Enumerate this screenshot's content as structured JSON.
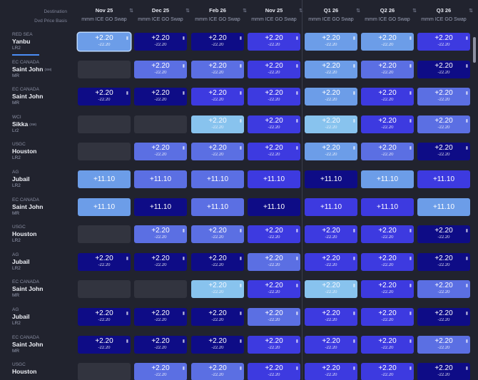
{
  "header": {
    "destination_label": "Destination",
    "basis_label": "Dvd Price Basis",
    "sort_glyph": "⇅",
    "columns": [
      {
        "period": "Nov 25",
        "basis": "mmm ICE GO Swap"
      },
      {
        "period": "Dec 25",
        "basis": "mmm ICE GO Swap"
      },
      {
        "period": "Feb 26",
        "basis": "mmm ICE GO Swap"
      },
      {
        "period": "Nov 25",
        "basis": "mmm ICE GO Swap"
      },
      {
        "period": "Q1 26",
        "basis": "mmm ICE GO Swap"
      },
      {
        "period": "Q2 26",
        "basis": "mmm ICE GO Swap"
      },
      {
        "period": "Q3 26",
        "basis": "mmm ICE GO Swap"
      }
    ]
  },
  "icons": {
    "doc": "document-icon",
    "sort": "sort-icon"
  },
  "colors": {
    "background": "#21232e",
    "empty": "#32343f",
    "dark": "#0e0c86",
    "mid": "#3d3ae0",
    "med": "#5b6fe3",
    "light": "#6c9de8",
    "pale": "#88c3ee",
    "selected_outline": "#bcd9ff",
    "row_underline": "#4b8df5"
  },
  "rows": [
    {
      "region": "RED SEA",
      "port": "Yanbu",
      "cap": "",
      "vessel": "LR2",
      "active": true,
      "cells": [
        {
          "style": "light",
          "value": "+2.20",
          "sub": "-22.20",
          "selected": true
        },
        {
          "style": "dark",
          "value": "+2.20",
          "sub": "-22.20"
        },
        {
          "style": "dark",
          "value": "+2.20",
          "sub": "-22.20"
        },
        {
          "style": "mid",
          "value": "+2.20",
          "sub": "-22.20"
        },
        {
          "style": "light",
          "value": "+2.20",
          "sub": "-22.20"
        },
        {
          "style": "light",
          "value": "+2.20",
          "sub": "-22.20"
        },
        {
          "style": "mid",
          "value": "+2.20",
          "sub": "-22.20"
        }
      ]
    },
    {
      "region": "EC CANADA",
      "port": "Saint John",
      "cap": "(SM)",
      "vessel": "MR",
      "cells": [
        {
          "style": "empty"
        },
        {
          "style": "med",
          "value": "+2.20",
          "sub": "-22.20"
        },
        {
          "style": "med",
          "value": "+2.20",
          "sub": "-22.20"
        },
        {
          "style": "mid",
          "value": "+2.20",
          "sub": "-22.20"
        },
        {
          "style": "light",
          "value": "+2.20",
          "sub": "-22.20"
        },
        {
          "style": "med",
          "value": "+2.20",
          "sub": "-22.20"
        },
        {
          "style": "dark",
          "value": "+2.20",
          "sub": "-22.20"
        }
      ]
    },
    {
      "region": "EC CANADA",
      "port": "Saint John",
      "cap": "",
      "vessel": "MR",
      "cells": [
        {
          "style": "dark",
          "value": "+2.20",
          "sub": "-22.20"
        },
        {
          "style": "dark",
          "value": "+2.20",
          "sub": "-22.20"
        },
        {
          "style": "mid",
          "value": "+2.20",
          "sub": "-22.20"
        },
        {
          "style": "mid",
          "value": "+2.20",
          "sub": "-22.20"
        },
        {
          "style": "light",
          "value": "+2.20",
          "sub": "-22.20"
        },
        {
          "style": "mid",
          "value": "+2.20",
          "sub": "-22.20"
        },
        {
          "style": "med",
          "value": "+2.20",
          "sub": "-22.20"
        }
      ]
    },
    {
      "region": "WCI",
      "port": "Sikka",
      "cap": "(SM)",
      "vessel": "Lr2",
      "cells": [
        {
          "style": "empty"
        },
        {
          "style": "empty"
        },
        {
          "style": "pale",
          "value": "+2.20",
          "sub": "-22.20"
        },
        {
          "style": "mid",
          "value": "+2.20",
          "sub": "-22.20"
        },
        {
          "style": "pale",
          "value": "+2.20",
          "sub": "-22.20"
        },
        {
          "style": "mid",
          "value": "+2.20",
          "sub": "-22.20"
        },
        {
          "style": "med",
          "value": "+2.20",
          "sub": "-22.20"
        }
      ]
    },
    {
      "region": "USGC",
      "port": "Houston",
      "cap": "",
      "vessel": "LR2",
      "cells": [
        {
          "style": "empty"
        },
        {
          "style": "med",
          "value": "+2.20",
          "sub": "-22.20"
        },
        {
          "style": "med",
          "value": "+2.20",
          "sub": "-22.20"
        },
        {
          "style": "mid",
          "value": "+2.20",
          "sub": "-22.20"
        },
        {
          "style": "light",
          "value": "+2.20",
          "sub": "-22.20"
        },
        {
          "style": "med",
          "value": "+2.20",
          "sub": "-22.20"
        },
        {
          "style": "dark",
          "value": "+2.20",
          "sub": "-22.20"
        }
      ]
    },
    {
      "region": "AG",
      "port": "Jubail",
      "cap": "",
      "vessel": "LR2",
      "cells": [
        {
          "style": "light",
          "value": "+11.10"
        },
        {
          "style": "med",
          "value": "+11.10"
        },
        {
          "style": "med",
          "value": "+11.10"
        },
        {
          "style": "mid",
          "value": "+11.10"
        },
        {
          "style": "dark",
          "value": "+11.10"
        },
        {
          "style": "light",
          "value": "+11.10"
        },
        {
          "style": "mid",
          "value": "+11.10"
        }
      ]
    },
    {
      "region": "EC CANADA",
      "port": "Saint John",
      "cap": "",
      "vessel": "MR",
      "cells": [
        {
          "style": "light",
          "value": "+11.10"
        },
        {
          "style": "dark",
          "value": "+11.10"
        },
        {
          "style": "med",
          "value": "+11.10"
        },
        {
          "style": "dark",
          "value": "+11.10"
        },
        {
          "style": "mid",
          "value": "+11.10"
        },
        {
          "style": "mid",
          "value": "+11.10"
        },
        {
          "style": "light",
          "value": "+11.10"
        }
      ]
    },
    {
      "region": "USGC",
      "port": "Houston",
      "cap": "",
      "vessel": "LR2",
      "cells": [
        {
          "style": "empty"
        },
        {
          "style": "med",
          "value": "+2.20",
          "sub": "-22.20"
        },
        {
          "style": "med",
          "value": "+2.20",
          "sub": "-22.20"
        },
        {
          "style": "mid",
          "value": "+2.20",
          "sub": "-22.20"
        },
        {
          "style": "mid",
          "value": "+2.20",
          "sub": "-22.20"
        },
        {
          "style": "mid",
          "value": "+2.20",
          "sub": "-22.20"
        },
        {
          "style": "dark",
          "value": "+2.20",
          "sub": "-22.20"
        }
      ]
    },
    {
      "region": "AG",
      "port": "Jubail",
      "cap": "",
      "vessel": "LR2",
      "cells": [
        {
          "style": "dark",
          "value": "+2.20",
          "sub": "-22.20"
        },
        {
          "style": "dark",
          "value": "+2.20",
          "sub": "-22.20"
        },
        {
          "style": "dark",
          "value": "+2.20",
          "sub": "-22.20"
        },
        {
          "style": "med",
          "value": "+2.20",
          "sub": "-22.20"
        },
        {
          "style": "mid",
          "value": "+2.20",
          "sub": "-22.20"
        },
        {
          "style": "mid",
          "value": "+2.20",
          "sub": "-22.20"
        },
        {
          "style": "dark",
          "value": "+2.20",
          "sub": "-22.20"
        }
      ]
    },
    {
      "region": "EC CANADA",
      "port": "Saint John",
      "cap": "",
      "vessel": "MR",
      "cells": [
        {
          "style": "empty"
        },
        {
          "style": "empty"
        },
        {
          "style": "pale",
          "value": "+2.20",
          "sub": "-22.20"
        },
        {
          "style": "mid",
          "value": "+2.20",
          "sub": "-22.20"
        },
        {
          "style": "pale",
          "value": "+2.20",
          "sub": "-22.20"
        },
        {
          "style": "mid",
          "value": "+2.20",
          "sub": "-22.20"
        },
        {
          "style": "med",
          "value": "+2.20",
          "sub": "-22.20"
        }
      ]
    },
    {
      "region": "AG",
      "port": "Jubail",
      "cap": "",
      "vessel": "LR2",
      "cells": [
        {
          "style": "dark",
          "value": "+2.20",
          "sub": "-22.20"
        },
        {
          "style": "dark",
          "value": "+2.20",
          "sub": "-22.20"
        },
        {
          "style": "dark",
          "value": "+2.20",
          "sub": "-22.20"
        },
        {
          "style": "med",
          "value": "+2.20",
          "sub": "-22.20"
        },
        {
          "style": "mid",
          "value": "+2.20",
          "sub": "-22.20"
        },
        {
          "style": "mid",
          "value": "+2.20",
          "sub": "-22.20"
        },
        {
          "style": "dark",
          "value": "+2.20",
          "sub": "-22.20"
        }
      ]
    },
    {
      "region": "EC CANADA",
      "port": "Saint John",
      "cap": "",
      "vessel": "MR",
      "cells": [
        {
          "style": "dark",
          "value": "+2.20",
          "sub": "-22.20"
        },
        {
          "style": "dark",
          "value": "+2.20",
          "sub": "-22.20"
        },
        {
          "style": "dark",
          "value": "+2.20",
          "sub": "-22.20"
        },
        {
          "style": "mid",
          "value": "+2.20",
          "sub": "-22.20"
        },
        {
          "style": "mid",
          "value": "+2.20",
          "sub": "-22.20"
        },
        {
          "style": "mid",
          "value": "+2.20",
          "sub": "-22.20"
        },
        {
          "style": "med",
          "value": "+2.20",
          "sub": "-22.20"
        }
      ]
    },
    {
      "region": "USGC",
      "port": "Houston",
      "cap": "",
      "vessel": "",
      "cells": [
        {
          "style": "empty"
        },
        {
          "style": "med",
          "value": "+2.20",
          "sub": "-22.20"
        },
        {
          "style": "med",
          "value": "+2.20",
          "sub": "-22.20"
        },
        {
          "style": "mid",
          "value": "+2.20",
          "sub": "-22.20"
        },
        {
          "style": "mid",
          "value": "+2.20",
          "sub": "-22.20"
        },
        {
          "style": "mid",
          "value": "+2.20",
          "sub": "-22.20"
        },
        {
          "style": "dark",
          "value": "+2.20",
          "sub": "-22.20"
        }
      ]
    }
  ]
}
